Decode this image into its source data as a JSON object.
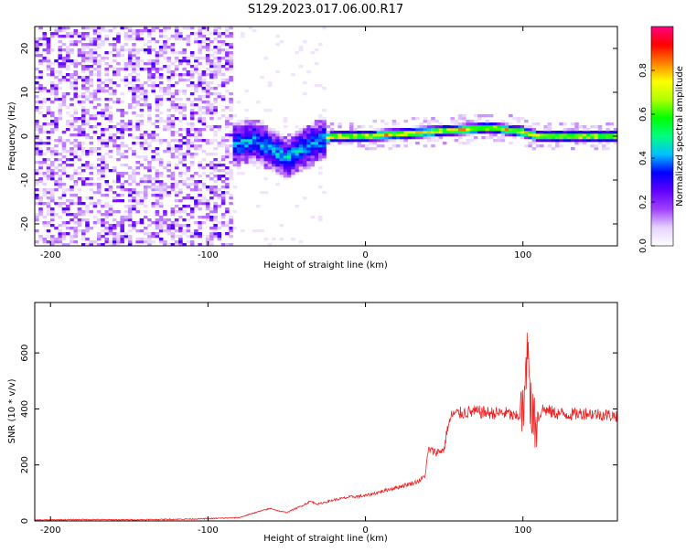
{
  "figure": {
    "title": "S129.2023.017.06.00.R17"
  },
  "chart_data": [
    {
      "type": "heatmap",
      "title": "",
      "xlabel": "Height of straight line (km)",
      "ylabel": "Frequency (Hz)",
      "xlim": [
        -210,
        160
      ],
      "ylim": [
        -25,
        25
      ],
      "xticks": [
        -200,
        -100,
        0,
        100
      ],
      "xtick_labels": [
        "-200",
        "-100",
        "0",
        "100"
      ],
      "yticks": [
        20,
        10,
        0,
        -10,
        -20
      ],
      "ytick_labels": [
        "20",
        "10",
        "0",
        "-10",
        "-20"
      ],
      "colorbar": {
        "label": "Normalized spectral amplitude",
        "range": [
          0,
          1
        ],
        "ticks": [
          0.0,
          0.2,
          0.4,
          0.6,
          0.8
        ],
        "tick_labels": [
          "0.0",
          "0.2",
          "0.4",
          "0.6",
          "0.8"
        ],
        "colors": [
          "#ffffff",
          "#e6d2ff",
          "#a040ff",
          "#6000ff",
          "#0000ff",
          "#00c0ff",
          "#00ff80",
          "#00ff00",
          "#b0ff00",
          "#ffff00",
          "#ff8000",
          "#ff0000",
          "#ff0080"
        ]
      },
      "regions": [
        {
          "name": "noise",
          "x_range": [
            -210,
            -85
          ],
          "y_range": [
            -25,
            25
          ],
          "amplitude": 0.15
        },
        {
          "name": "transition",
          "x_range": [
            -85,
            -25
          ],
          "center_freq": -3,
          "spread": 5,
          "amplitude": 0.35
        },
        {
          "name": "signal",
          "x_range": [
            -25,
            160
          ],
          "center_freq": 0.5,
          "spread": 1.5,
          "amplitude": 0.85
        }
      ],
      "signal_ridge": [
        {
          "x": -85,
          "f": -2
        },
        {
          "x": -70,
          "f": -1
        },
        {
          "x": -60,
          "f": -3
        },
        {
          "x": -50,
          "f": -5
        },
        {
          "x": -40,
          "f": -3
        },
        {
          "x": -30,
          "f": -1
        },
        {
          "x": -20,
          "f": 0
        },
        {
          "x": 0,
          "f": 0
        },
        {
          "x": 40,
          "f": 1
        },
        {
          "x": 80,
          "f": 2
        },
        {
          "x": 100,
          "f": 1
        },
        {
          "x": 110,
          "f": 0
        },
        {
          "x": 160,
          "f": 0
        }
      ],
      "grid": false,
      "legend": "none"
    },
    {
      "type": "line",
      "title": "",
      "xlabel": "Height of straight line (km)",
      "ylabel": "SNR (10 * v/v)",
      "xlim": [
        -210,
        160
      ],
      "ylim": [
        0,
        780
      ],
      "xticks": [
        -200,
        -100,
        0,
        100
      ],
      "xtick_labels": [
        "-200",
        "-100",
        "0",
        "100"
      ],
      "yticks": [
        0,
        200,
        400,
        600
      ],
      "ytick_labels": [
        "0",
        "200",
        "400",
        "600"
      ],
      "color": "#ee2222",
      "series": [
        {
          "x": [
            -210,
            -180,
            -150,
            -120,
            -100,
            -80,
            -70,
            -60,
            -55,
            -50,
            -40,
            -35,
            -30,
            -20,
            -10,
            0,
            10,
            20,
            30,
            35,
            38,
            40,
            45,
            50,
            52,
            55,
            60,
            70,
            80,
            90,
            95,
            100,
            103,
            105,
            108,
            112,
            120,
            130,
            140,
            150,
            160
          ],
          "y": [
            3,
            5,
            4,
            6,
            8,
            12,
            30,
            45,
            35,
            30,
            55,
            70,
            60,
            75,
            85,
            90,
            105,
            120,
            135,
            145,
            165,
            255,
            245,
            255,
            330,
            380,
            385,
            390,
            385,
            385,
            370,
            380,
            590,
            420,
            330,
            400,
            385,
            380,
            385,
            380,
            375
          ]
        }
      ],
      "grid": false,
      "legend": "none"
    }
  ]
}
